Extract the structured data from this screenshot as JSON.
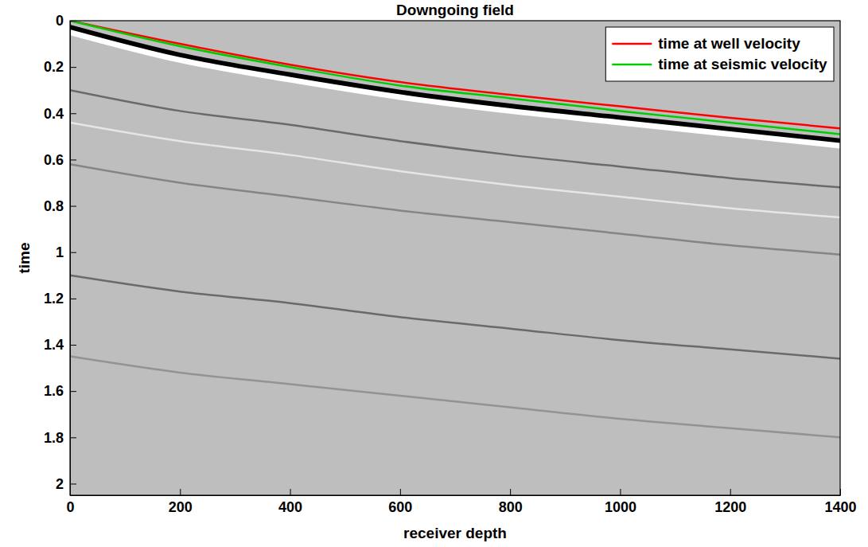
{
  "chart_data": {
    "type": "line",
    "title": "Downgoing field",
    "x_label": "receiver depth",
    "y_label": "time",
    "x": [
      0,
      200,
      400,
      600,
      800,
      1000,
      1200,
      1400
    ],
    "series": [
      {
        "color": "#000000",
        "values": [
          0.03,
          0.15,
          0.235,
          0.31,
          0.37,
          0.42,
          0.47,
          0.52
        ]
      },
      {
        "color": "#ffffff",
        "values": [
          0.05,
          0.17,
          0.255,
          0.33,
          0.39,
          0.44,
          0.49,
          0.54
        ]
      },
      {
        "color": "#555555",
        "values": [
          0.3,
          0.39,
          0.45,
          0.52,
          0.58,
          0.63,
          0.68,
          0.72
        ]
      },
      {
        "color": "#f0f0f0",
        "values": [
          0.44,
          0.52,
          0.58,
          0.65,
          0.71,
          0.76,
          0.81,
          0.85
        ]
      },
      {
        "color": "#777777",
        "values": [
          0.62,
          0.7,
          0.76,
          0.82,
          0.87,
          0.92,
          0.97,
          1.01
        ]
      },
      {
        "color": "#555555",
        "values": [
          1.1,
          1.17,
          1.22,
          1.28,
          1.33,
          1.38,
          1.42,
          1.46
        ]
      },
      {
        "color": "#888888",
        "values": [
          1.45,
          1.52,
          1.57,
          1.62,
          1.67,
          1.72,
          1.76,
          1.8
        ]
      },
      {
        "name": "time at well velocity",
        "color": "#ff0000",
        "values": [
          0,
          0.1,
          0.19,
          0.265,
          0.32,
          0.37,
          0.42,
          0.465
        ]
      },
      {
        "name": "time at seismic velocity",
        "color": "#00cc00",
        "values": [
          0,
          0.11,
          0.2,
          0.28,
          0.335,
          0.39,
          0.44,
          0.49
        ]
      }
    ],
    "xlim": [
      0,
      1400
    ],
    "ylim": [
      0,
      2.05
    ],
    "xticks": [
      0,
      200,
      400,
      600,
      800,
      1000,
      1200,
      1400
    ],
    "yticks": [
      0,
      0.2,
      0.4,
      0.6,
      0.8,
      1,
      1.2,
      1.4,
      1.6,
      1.8,
      2
    ],
    "grid": false,
    "legend": "upper right"
  }
}
